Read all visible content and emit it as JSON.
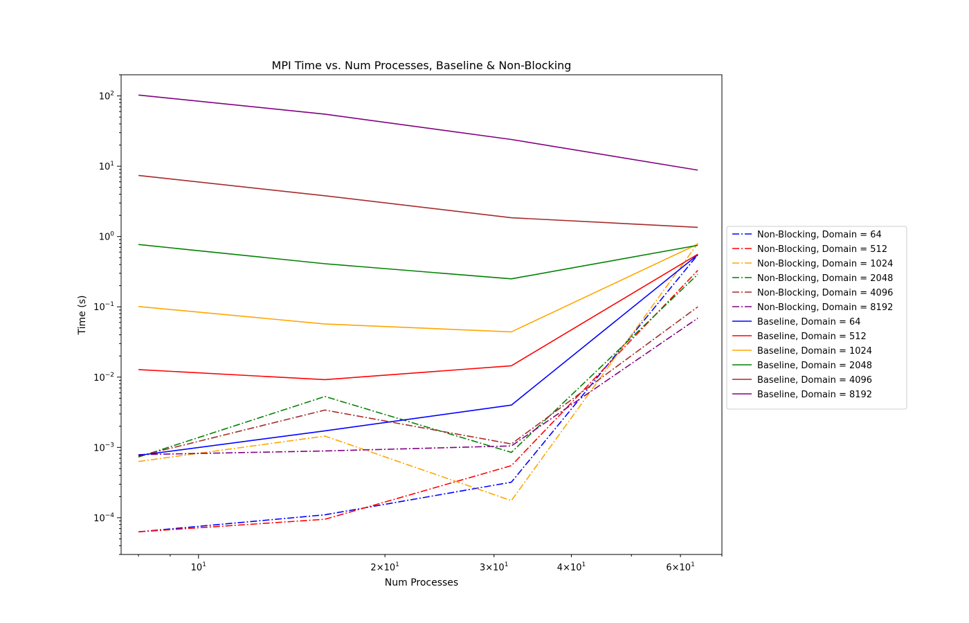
{
  "chart_data": {
    "type": "line",
    "title": "MPI Time vs. Num Processes, Baseline & Non-Blocking",
    "xlabel": "Num Processes",
    "ylabel": "Time (s)",
    "xscale": "log",
    "yscale": "log",
    "xlim": [
      7.5,
      70
    ],
    "ylim": [
      3e-05,
      200
    ],
    "grid": false,
    "legend_position": "outside-right",
    "x": [
      8,
      16,
      32,
      64
    ],
    "xtick_labels": [
      {
        "base": "10",
        "exp": "1",
        "value": 10
      },
      {
        "base": "2×10",
        "exp": "1",
        "value": 20
      },
      {
        "base": "3×10",
        "exp": "1",
        "value": 30
      },
      {
        "base": "4×10",
        "exp": "1",
        "value": 40
      },
      {
        "base": "6×10",
        "exp": "1",
        "value": 60
      }
    ],
    "ytick_labels": [
      {
        "base": "10",
        "exp": "−4",
        "value": 0.0001
      },
      {
        "base": "10",
        "exp": "−3",
        "value": 0.001
      },
      {
        "base": "10",
        "exp": "−2",
        "value": 0.01
      },
      {
        "base": "10",
        "exp": "−1",
        "value": 0.1
      },
      {
        "base": "10",
        "exp": "0",
        "value": 1
      },
      {
        "base": "10",
        "exp": "1",
        "value": 10
      },
      {
        "base": "10",
        "exp": "2",
        "value": 100
      }
    ],
    "series": [
      {
        "name": "Non-Blocking, Domain = 64",
        "color": "#0000ff",
        "style": "dashdot",
        "values": [
          6.3e-05,
          0.00011,
          0.00032,
          0.55
        ]
      },
      {
        "name": "Non-Blocking, Domain = 512",
        "color": "#ff0000",
        "style": "dashdot",
        "values": [
          6.3e-05,
          9.5e-05,
          0.00055,
          0.33
        ]
      },
      {
        "name": "Non-Blocking, Domain = 1024",
        "color": "#ffa500",
        "style": "dashdot",
        "values": [
          0.00063,
          0.00145,
          0.000175,
          0.8
        ]
      },
      {
        "name": "Non-Blocking, Domain = 2048",
        "color": "#008000",
        "style": "dashdot",
        "values": [
          0.00073,
          0.0053,
          0.00085,
          0.29
        ]
      },
      {
        "name": "Non-Blocking, Domain = 4096",
        "color": "#a52a2a",
        "style": "dashdot",
        "values": [
          0.00075,
          0.0034,
          0.00112,
          0.1
        ]
      },
      {
        "name": "Non-Blocking, Domain = 8192",
        "color": "#800080",
        "style": "dashdot",
        "values": [
          0.00079,
          0.00089,
          0.00105,
          0.069
        ]
      },
      {
        "name": "Baseline, Domain = 64",
        "color": "#0000ff",
        "style": "solid",
        "values": [
          0.00077,
          0.00172,
          0.004,
          0.55
        ]
      },
      {
        "name": "Baseline, Domain = 512",
        "color": "#ff0000",
        "style": "solid",
        "values": [
          0.0128,
          0.0092,
          0.0145,
          0.56
        ]
      },
      {
        "name": "Baseline, Domain = 1024",
        "color": "#ffa500",
        "style": "solid",
        "values": [
          0.101,
          0.057,
          0.044,
          0.78
        ]
      },
      {
        "name": "Baseline, Domain = 2048",
        "color": "#008000",
        "style": "solid",
        "values": [
          0.77,
          0.41,
          0.25,
          0.75
        ]
      },
      {
        "name": "Baseline, Domain = 4096",
        "color": "#a52a2a",
        "style": "solid",
        "values": [
          7.4,
          3.8,
          1.85,
          1.35
        ]
      },
      {
        "name": "Baseline, Domain = 8192",
        "color": "#800080",
        "style": "solid",
        "values": [
          103,
          55,
          24,
          8.8
        ]
      }
    ]
  }
}
